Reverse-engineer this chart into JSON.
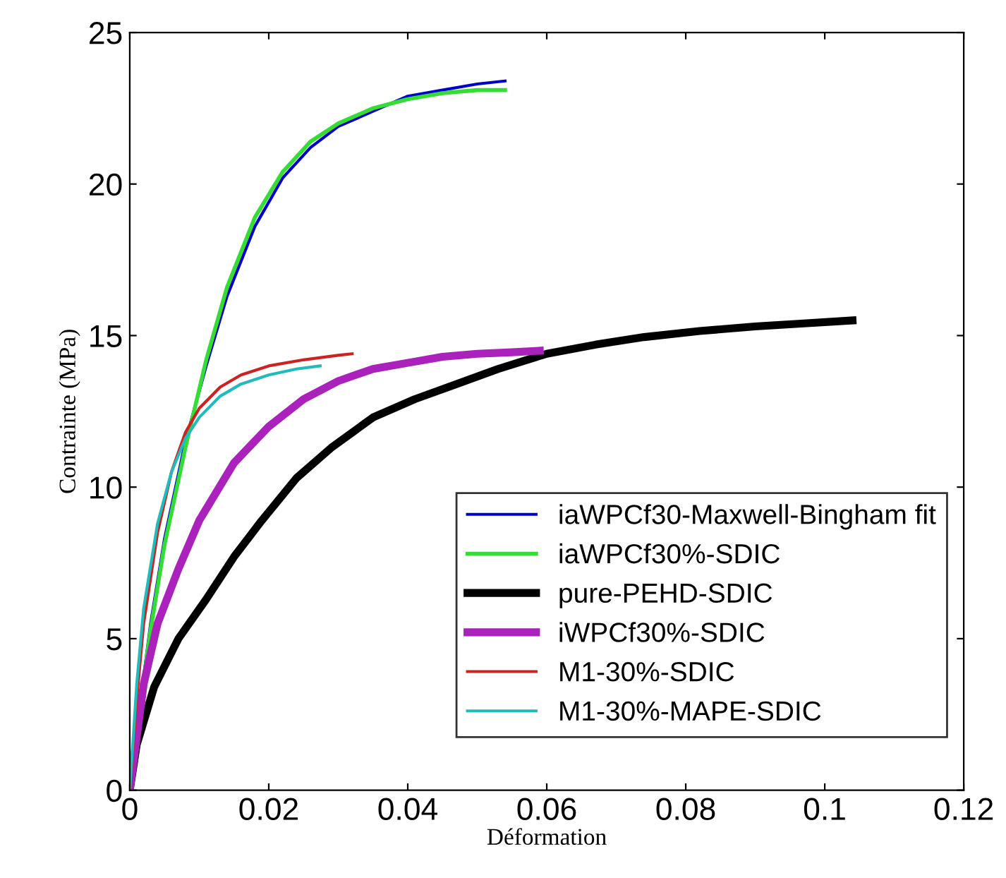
{
  "chart_data": {
    "type": "line",
    "xlabel": "Déformation",
    "ylabel": "Contrainte (MPa)",
    "xlim": [
      0,
      0.12
    ],
    "xticks": [
      0,
      0.02,
      0.04,
      0.06,
      0.08,
      0.1,
      0.12
    ],
    "ylim": [
      0,
      25
    ],
    "yticks": [
      0,
      5,
      10,
      15,
      20,
      25
    ],
    "grid": false,
    "legend": "bottom right",
    "marker": "none",
    "line_style": "solid",
    "series": [
      {
        "name": "iaWPCf30-Maxwell-Bingham fit",
        "color": "#0000cc",
        "x": [
          0,
          0.001,
          0.003,
          0.005,
          0.008,
          0.011,
          0.014,
          0.018,
          0.022,
          0.026,
          0.03,
          0.035,
          0.04,
          0.045,
          0.05,
          0.054
        ],
        "values": [
          0,
          2,
          5.5,
          8.3,
          11.5,
          14,
          16.3,
          18.6,
          20.2,
          21.2,
          21.9,
          22.4,
          22.9,
          23.1,
          23.3,
          23.4
        ]
      },
      {
        "name": "iaWPCf30%-SDIC",
        "color": "#33dd33",
        "x": [
          0,
          0.001,
          0.003,
          0.005,
          0.008,
          0.011,
          0.014,
          0.018,
          0.022,
          0.026,
          0.03,
          0.035,
          0.04,
          0.045,
          0.05,
          0.054
        ],
        "values": [
          0,
          2,
          5.3,
          8.1,
          11.3,
          14.2,
          16.6,
          18.9,
          20.4,
          21.4,
          22,
          22.5,
          22.8,
          23,
          23.1,
          23.1
        ]
      },
      {
        "name": "pure-PEHD-SDIC",
        "color": "#000000",
        "x": [
          0,
          0.001,
          0.0035,
          0.007,
          0.011,
          0.015,
          0.019,
          0.024,
          0.029,
          0.035,
          0.041,
          0.047,
          0.053,
          0.06,
          0.067,
          0.074,
          0.082,
          0.09,
          0.097,
          0.104
        ],
        "values": [
          0,
          1.5,
          3.4,
          5,
          6.3,
          7.7,
          8.9,
          10.3,
          11.3,
          12.3,
          12.9,
          13.4,
          13.9,
          14.4,
          14.7,
          14.95,
          15.15,
          15.3,
          15.4,
          15.5
        ]
      },
      {
        "name": "iWPCf30%-SDIC",
        "color": "#aa22bb",
        "x": [
          0,
          0.002,
          0.004,
          0.007,
          0.01,
          0.015,
          0.02,
          0.025,
          0.03,
          0.035,
          0.04,
          0.045,
          0.05,
          0.055,
          0.059
        ],
        "values": [
          0,
          3.5,
          5.5,
          7.3,
          8.9,
          10.8,
          12,
          12.9,
          13.5,
          13.9,
          14.1,
          14.3,
          14.4,
          14.45,
          14.5
        ]
      },
      {
        "name": "M1-30%-SDIC",
        "color": "#cc2222",
        "x": [
          0,
          0.001,
          0.002,
          0.004,
          0.006,
          0.008,
          0.01,
          0.013,
          0.016,
          0.02,
          0.025,
          0.03,
          0.032
        ],
        "values": [
          0,
          3,
          5.5,
          8.5,
          10.5,
          11.8,
          12.6,
          13.3,
          13.7,
          14,
          14.2,
          14.35,
          14.4
        ]
      },
      {
        "name": "M1-30%-MAPE-SDIC",
        "color": "#22bbbb",
        "x": [
          0,
          0.001,
          0.002,
          0.004,
          0.006,
          0.008,
          0.01,
          0.013,
          0.016,
          0.02,
          0.024,
          0.0274
        ],
        "values": [
          0,
          3.5,
          6,
          8.8,
          10.5,
          11.6,
          12.3,
          13,
          13.4,
          13.7,
          13.9,
          14
        ]
      }
    ]
  }
}
